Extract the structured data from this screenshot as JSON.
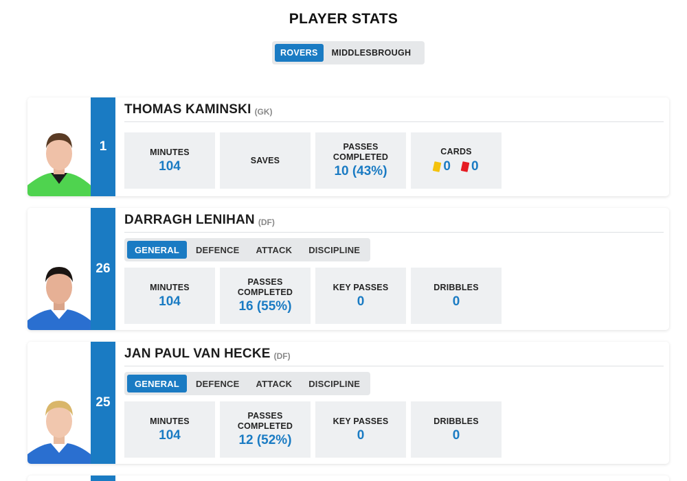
{
  "page_title": "PLAYER STATS",
  "team_toggle": [
    "ROVERS",
    "MIDDLESBROUGH"
  ],
  "colors": {
    "accent": "#1a7bc3",
    "panel": "#eef0f2",
    "yellow_card": "#f4c20d",
    "red_card": "#e51c23"
  },
  "players": [
    {
      "number": "1",
      "name": "THOMAS KAMINSKI",
      "position": "(GK)",
      "stats": [
        {
          "label": "MINUTES",
          "value": "104"
        },
        {
          "label": "SAVES",
          "value": ""
        },
        {
          "label": "PASSES\nCOMPLETED",
          "value": "10 (43%)"
        }
      ],
      "cards": {
        "label": "CARDS",
        "yellow": "0",
        "red": "0"
      }
    },
    {
      "number": "26",
      "name": "DARRAGH LENIHAN",
      "position": "(DF)",
      "tabs": [
        "GENERAL",
        "DEFENCE",
        "ATTACK",
        "DISCIPLINE"
      ],
      "stats": [
        {
          "label": "MINUTES",
          "value": "104"
        },
        {
          "label": "PASSES\nCOMPLETED",
          "value": "16 (55%)"
        },
        {
          "label": "KEY PASSES",
          "value": "0"
        },
        {
          "label": "DRIBBLES",
          "value": "0"
        }
      ]
    },
    {
      "number": "25",
      "name": "JAN PAUL VAN HECKE",
      "position": "(DF)",
      "tabs": [
        "GENERAL",
        "DEFENCE",
        "ATTACK",
        "DISCIPLINE"
      ],
      "stats": [
        {
          "label": "MINUTES",
          "value": "104"
        },
        {
          "label": "PASSES\nCOMPLETED",
          "value": "12 (52%)"
        },
        {
          "label": "KEY PASSES",
          "value": "0"
        },
        {
          "label": "DRIBBLES",
          "value": "0"
        }
      ]
    }
  ]
}
